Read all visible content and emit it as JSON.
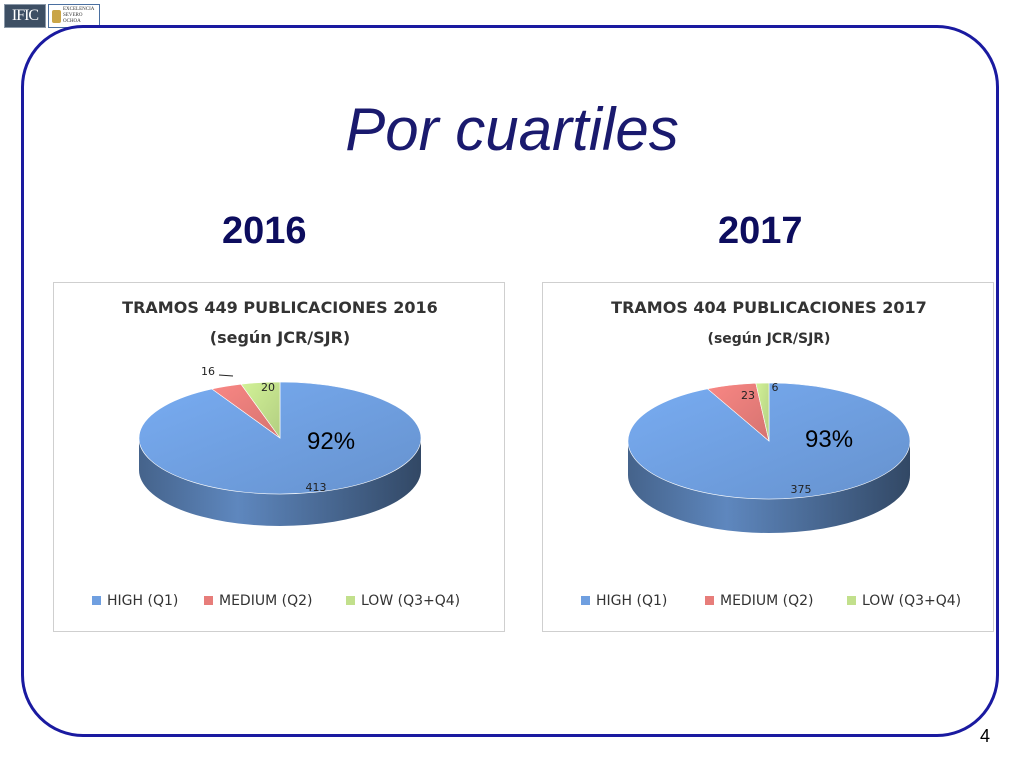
{
  "slide": {
    "title": "Por cuartiles",
    "page_number": "4",
    "logo_left": "IFIC",
    "logo_right": [
      "EXCELENCIA",
      "SEVERO",
      "OCHOA"
    ]
  },
  "colors": {
    "frame": "#1a1aa0",
    "title": "#1a1a6e",
    "high": "#6f9fe0",
    "medium": "#e77d7a",
    "low": "#c2e08c"
  },
  "chart_data": [
    {
      "type": "pie",
      "year_label": "2016",
      "title_lines": [
        "TRAMOS 449 PUBLICACIONES 2016",
        "(según JCR/SJR)"
      ],
      "title_bold_all": true,
      "categories": [
        "HIGH (Q1)",
        "MEDIUM (Q2)",
        "LOW (Q3+Q4)"
      ],
      "values": [
        413,
        16,
        20
      ],
      "value_labels": [
        "413",
        "16",
        "20"
      ],
      "percent_label": "92%",
      "legend_position": "bottom"
    },
    {
      "type": "pie",
      "year_label": "2017",
      "title_lines": [
        "TRAMOS 404 PUBLICACIONES 2017",
        "(según JCR/SJR)"
      ],
      "title_bold_all": false,
      "categories": [
        "HIGH (Q1)",
        "MEDIUM (Q2)",
        "LOW (Q3+Q4)"
      ],
      "values": [
        375,
        23,
        6
      ],
      "value_labels": [
        "375",
        "23",
        "6"
      ],
      "percent_label": "93%",
      "legend_position": "bottom"
    }
  ]
}
